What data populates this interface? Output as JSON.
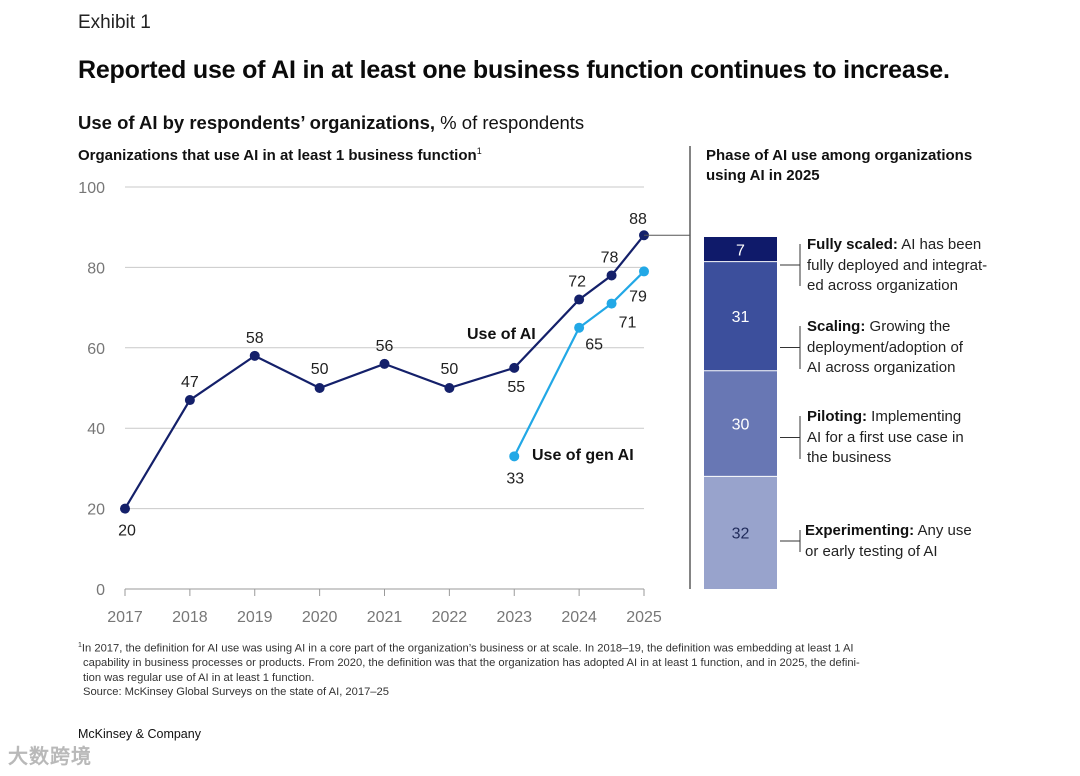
{
  "exhibit": "Exhibit 1",
  "title": "Reported use of AI in at least one business function continues to increase.",
  "subtitle_bold": "Use of AI by respondents’ organizations,",
  "subtitle_rest": " % of respondents",
  "left_heading": "Organizations that use AI in at least 1 business function",
  "left_heading_sup": "1",
  "right_heading": "Phase of AI use among organizations using AI in 2025",
  "chart_data": [
    {
      "type": "line",
      "title": "Organizations that use AI in at least 1 business function",
      "x_ticks": [
        "2017",
        "2018",
        "2019",
        "2020",
        "2021",
        "2022",
        "2023",
        "2024",
        "2025"
      ],
      "y_ticks": [
        0,
        20,
        40,
        60,
        80,
        100
      ],
      "ylim": [
        0,
        100
      ],
      "grid": true,
      "series": [
        {
          "name": "Use of AI",
          "color": "#14206a",
          "points": [
            {
              "x": 2017,
              "y": 20
            },
            {
              "x": 2018,
              "y": 47
            },
            {
              "x": 2019,
              "y": 58
            },
            {
              "x": 2020,
              "y": 50
            },
            {
              "x": 2021,
              "y": 56
            },
            {
              "x": 2022,
              "y": 50
            },
            {
              "x": 2023,
              "y": 55
            },
            {
              "x": 2024,
              "y": 72
            },
            {
              "x": 2024.5,
              "y": 78
            },
            {
              "x": 2025,
              "y": 88
            }
          ]
        },
        {
          "name": "Use of gen AI",
          "color": "#22a8e6",
          "points": [
            {
              "x": 2023,
              "y": 33
            },
            {
              "x": 2024,
              "y": 65
            },
            {
              "x": 2024.5,
              "y": 71
            },
            {
              "x": 2025,
              "y": 79
            }
          ]
        }
      ]
    },
    {
      "type": "bar",
      "title": "Phase of AI use among organizations using AI in 2025",
      "stacked": true,
      "segments": [
        {
          "value": 7,
          "name": "Fully scaled:",
          "desc": "AI has been fully deployed and integrat-|ed across organization",
          "color": "#0f1a6a",
          "text_color": "#ffffff"
        },
        {
          "value": 31,
          "name": "Scaling:",
          "desc": "Growing the deployment/adoption of|AI across organization",
          "color": "#3c4f9c",
          "text_color": "#ffffff"
        },
        {
          "value": 30,
          "name": "Piloting:",
          "desc": "Implementing AI for a first use case in|the business",
          "color": "#6877b4",
          "text_color": "#ffffff"
        },
        {
          "value": 32,
          "name": "Experimenting:",
          "desc": "Any use or early testing of AI",
          "color": "#98a3cc",
          "text_color": "#1f2a5a"
        }
      ]
    }
  ],
  "phase_labels": [
    {
      "bold": "Fully scaled:",
      "line1": " AI has been",
      "line2": "fully deployed and integrat-",
      "line3": "ed across organization"
    },
    {
      "bold": "Scaling:",
      "line1": " Growing the",
      "line2": "deployment/adoption of",
      "line3": "AI across organization"
    },
    {
      "bold": "Piloting:",
      "line1": " Implementing",
      "line2": "AI for a first use case in",
      "line3": "the business"
    },
    {
      "bold": "Experimenting:",
      "line1": " Any use",
      "line2": "or early testing of AI",
      "line3": ""
    }
  ],
  "footnote": {
    "sup": "1",
    "line1": "In 2017, the definition for AI use was using AI in a core part of the organization’s business or at scale. In 2018–19, the definition was embedding at least 1 AI",
    "line2": "capability in business processes or products. From 2020, the definition was that the organization has adopted AI in at least 1 function, and in 2025, the defini-",
    "line3": "tion was regular use of AI in at least 1 function.",
    "source": "Source: McKinsey Global Surveys on the state of AI, 2017–25"
  },
  "company": "McKinsey & Company",
  "watermark": "大数跨境"
}
